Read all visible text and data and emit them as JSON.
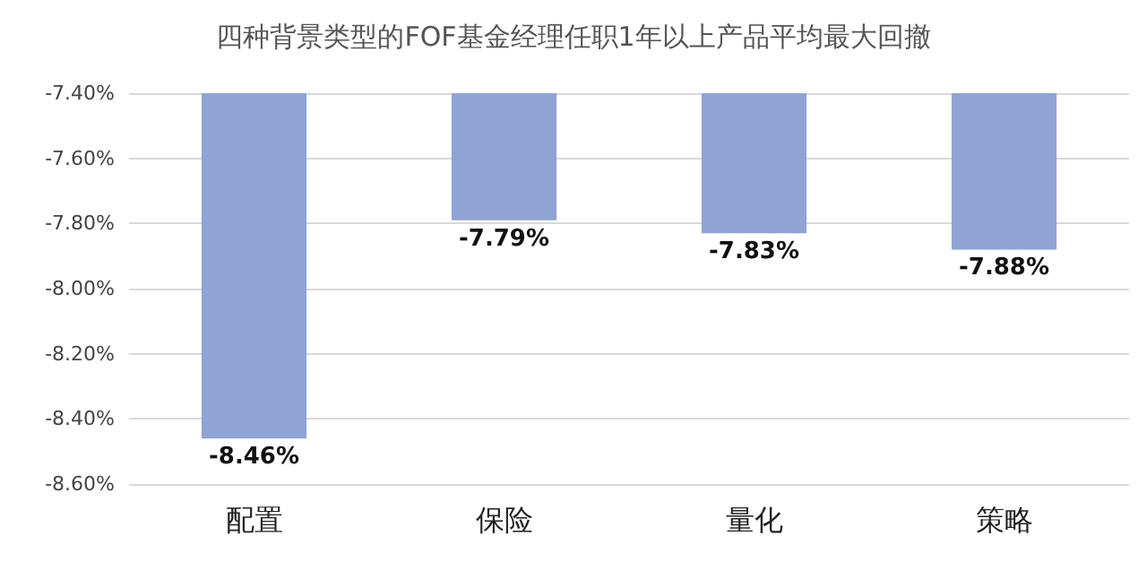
{
  "chart_data": {
    "type": "bar",
    "title": "四种背景类型的FOF基金经理任职1年以上产品平均最大回撤",
    "categories": [
      "配置",
      "保险",
      "量化",
      "策略"
    ],
    "values": [
      -8.46,
      -7.79,
      -7.83,
      -7.88
    ],
    "value_labels": [
      "-8.46%",
      "-7.79%",
      "-7.83%",
      "-7.88%"
    ],
    "color": "#8fa3d5",
    "ylim": [
      -8.6,
      -7.4
    ],
    "yticks": [
      {
        "value": -8.6,
        "label": "-8.60%"
      },
      {
        "value": -8.4,
        "label": "-8.40%"
      },
      {
        "value": -8.2,
        "label": "-8.20%"
      },
      {
        "value": -8.0,
        "label": "-8.00%"
      },
      {
        "value": -7.8,
        "label": "-7.80%"
      },
      {
        "value": -7.6,
        "label": "-7.60%"
      },
      {
        "value": -7.4,
        "label": "-7.40%"
      }
    ],
    "grid": true
  }
}
